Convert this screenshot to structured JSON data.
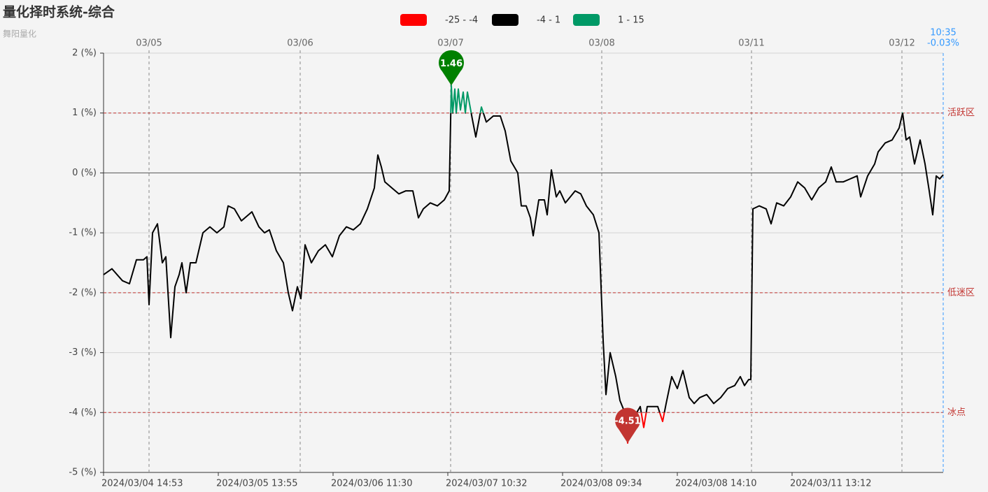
{
  "chart_data": {
    "type": "line",
    "title": "量化择时系统-综合",
    "subtitle": "舞阳量化",
    "xlim": [
      0,
      1200
    ],
    "ylim": [
      -5,
      2
    ],
    "yticks": [
      {
        "value": 2,
        "label": "2 (%)"
      },
      {
        "value": 1,
        "label": "1 (%)"
      },
      {
        "value": 0,
        "label": "0 (%)"
      },
      {
        "value": -1,
        "label": "-1 (%)"
      },
      {
        "value": -2,
        "label": "-2 (%)"
      },
      {
        "value": -3,
        "label": "-3 (%)"
      },
      {
        "value": -4,
        "label": "-4 (%)"
      },
      {
        "value": -5,
        "label": "-5 (%)"
      }
    ],
    "xticks": [
      {
        "value": 0,
        "label": "2024/03/04 14:53"
      },
      {
        "value": 164,
        "label": "2024/03/05 13:55"
      },
      {
        "value": 328,
        "label": "2024/03/06 11:30"
      },
      {
        "value": 492,
        "label": "2024/03/07 10:32"
      },
      {
        "value": 656,
        "label": "2024/03/08 09:34"
      },
      {
        "value": 820,
        "label": "2024/03/08 14:10"
      },
      {
        "value": 984,
        "label": "2024/03/11 13:12"
      }
    ],
    "x2ticks": [
      {
        "value": 65,
        "label": "03/05"
      },
      {
        "value": 281,
        "label": "03/06"
      },
      {
        "value": 496,
        "label": "03/07"
      },
      {
        "value": 712,
        "label": "03/08"
      },
      {
        "value": 926,
        "label": "03/11"
      },
      {
        "value": 1141,
        "label": "03/12"
      }
    ],
    "grid": true,
    "x": [
      0,
      12,
      27,
      37,
      47,
      57,
      62,
      65,
      70,
      77,
      84,
      89,
      96,
      102,
      108,
      112,
      118,
      124,
      132,
      142,
      152,
      162,
      172,
      178,
      187,
      197,
      212,
      222,
      230,
      237,
      247,
      257,
      264,
      270,
      277,
      282,
      288,
      297,
      307,
      317,
      327,
      337,
      347,
      357,
      367,
      377,
      387,
      392,
      397,
      402,
      412,
      422,
      432,
      442,
      450,
      457,
      467,
      477,
      487,
      494,
      497,
      499,
      502,
      504,
      507,
      510,
      514,
      517,
      520,
      527,
      532,
      540,
      547,
      557,
      567,
      574,
      582,
      592,
      597,
      604,
      610,
      614,
      622,
      630,
      634,
      640,
      647,
      652,
      660,
      667,
      674,
      682,
      690,
      700,
      708,
      714,
      718,
      724,
      732,
      738,
      745,
      749,
      755,
      762,
      767,
      772,
      777,
      784,
      792,
      799,
      804,
      812,
      820,
      828,
      837,
      844,
      852,
      862,
      872,
      882,
      892,
      902,
      910,
      916,
      922,
      925,
      928,
      937,
      947,
      954,
      962,
      972,
      982,
      992,
      1002,
      1012,
      1022,
      1032,
      1040,
      1047,
      1057,
      1067,
      1077,
      1082,
      1092,
      1102,
      1107,
      1117,
      1127,
      1137,
      1142,
      1147,
      1152,
      1159,
      1167,
      1174,
      1180,
      1185,
      1190,
      1195,
      1200
    ],
    "series": [
      {
        "values": [
          -1.7,
          -1.6,
          -1.8,
          -1.85,
          -1.45,
          -1.45,
          -1.4,
          -2.2,
          -1.0,
          -0.85,
          -1.5,
          -1.4,
          -2.75,
          -1.9,
          -1.7,
          -1.5,
          -2.0,
          -1.5,
          -1.5,
          -1.0,
          -0.9,
          -1.0,
          -0.9,
          -0.55,
          -0.6,
          -0.8,
          -0.65,
          -0.9,
          -1.0,
          -0.95,
          -1.3,
          -1.5,
          -2.0,
          -2.3,
          -1.9,
          -2.1,
          -1.2,
          -1.5,
          -1.3,
          -1.2,
          -1.4,
          -1.05,
          -0.9,
          -0.95,
          -0.85,
          -0.6,
          -0.25,
          0.3,
          0.1,
          -0.15,
          -0.25,
          -0.35,
          -0.3,
          -0.3,
          -0.75,
          -0.6,
          -0.5,
          -0.55,
          -0.45,
          -0.3,
          1.46,
          1.0,
          1.4,
          1.0,
          1.4,
          1.05,
          1.35,
          1.0,
          1.35,
          0.9,
          0.6,
          1.1,
          0.85,
          0.95,
          0.95,
          0.7,
          0.2,
          0.0,
          -0.55,
          -0.55,
          -0.75,
          -1.05,
          -0.45,
          -0.45,
          -0.7,
          0.05,
          -0.4,
          -0.3,
          -0.5,
          -0.4,
          -0.3,
          -0.35,
          -0.55,
          -0.7,
          -1.0,
          -2.8,
          -3.7,
          -3.0,
          -3.4,
          -3.8,
          -4.0,
          -4.51,
          -4.0,
          -4.0,
          -3.9,
          -4.25,
          -3.9,
          -3.9,
          -3.9,
          -4.15,
          -3.85,
          -3.4,
          -3.6,
          -3.3,
          -3.75,
          -3.85,
          -3.75,
          -3.7,
          -3.85,
          -3.75,
          -3.6,
          -3.55,
          -3.4,
          -3.55,
          -3.45,
          -3.45,
          -0.6,
          -0.55,
          -0.6,
          -0.85,
          -0.5,
          -0.55,
          -0.4,
          -0.15,
          -0.25,
          -0.45,
          -0.25,
          -0.15,
          0.1,
          -0.15,
          -0.15,
          -0.1,
          -0.05,
          -0.4,
          -0.05,
          0.15,
          0.35,
          0.5,
          0.55,
          0.75,
          1.0,
          0.55,
          0.6,
          0.15,
          0.55,
          0.15,
          -0.3,
          -0.7,
          -0.05,
          -0.1,
          -0.03
        ]
      }
    ],
    "visual_map": [
      {
        "min": -25,
        "max": -4,
        "label": "-25 - -4",
        "color": "#ff0000"
      },
      {
        "min": -4,
        "max": 1,
        "label": "-4 - 1",
        "color": "#000000"
      },
      {
        "min": 1,
        "max": 15,
        "label": "1 - 15",
        "color": "#009966"
      }
    ],
    "mark_lines": [
      {
        "value": 1,
        "label": "活跃区"
      },
      {
        "value": -2,
        "label": "低迷区"
      },
      {
        "value": -4,
        "label": "冰点"
      }
    ],
    "mark_points": [
      {
        "x": 497,
        "value": 1.46,
        "color": "#008000"
      },
      {
        "x": 749,
        "value": -4.51,
        "color": "#c23531"
      }
    ],
    "latest": {
      "x": 1200,
      "time": "10:35",
      "label": "-0.03%"
    }
  }
}
